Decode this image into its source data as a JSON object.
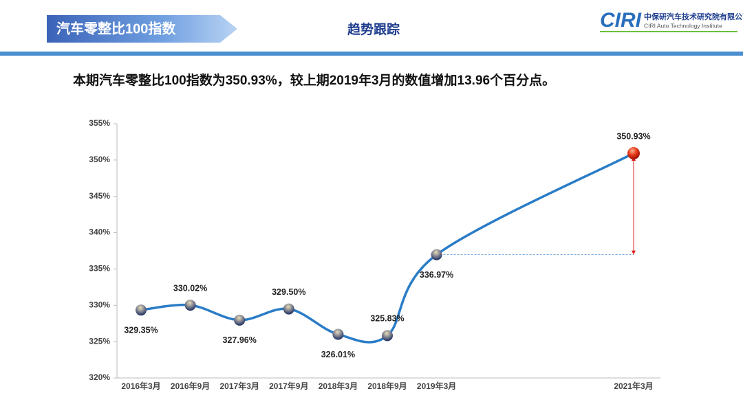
{
  "header": {
    "title": "汽车零整比100指数",
    "section": "趋势跟踪",
    "logo": "CIRI",
    "company": "中保研汽车技术研究院有限公司",
    "company_en": "CIRI Auto Technology Institute"
  },
  "summary": "本期汽车零整比100指数为350.93%，较上期2019年3月的数值增加13.96个百分点。",
  "chart_data": {
    "type": "line",
    "categories": [
      "2016年3月",
      "2016年9月",
      "2017年3月",
      "2017年9月",
      "2018年3月",
      "2018年9月",
      "2019年3月",
      null,
      null,
      null,
      "2021年3月"
    ],
    "values": [
      329.35,
      330.02,
      327.96,
      329.5,
      326.01,
      325.83,
      336.97,
      null,
      null,
      null,
      350.93
    ],
    "value_labels": [
      "329.35%",
      "330.02%",
      "327.96%",
      "329.50%",
      "326.01%",
      "325.83%",
      "336.97%",
      null,
      null,
      null,
      "350.93%"
    ],
    "color": "#2a7cc7",
    "span_gaps": true,
    "ylim": [
      320,
      355
    ],
    "yticks": [
      {
        "value": 320,
        "label": "320%"
      },
      {
        "value": 325,
        "label": "325%"
      },
      {
        "value": 330,
        "label": "330%"
      },
      {
        "value": 335,
        "label": "335%"
      },
      {
        "value": 340,
        "label": "340%"
      },
      {
        "value": 345,
        "label": "345%"
      },
      {
        "value": 350,
        "label": "350%"
      },
      {
        "value": 355,
        "label": "355%"
      }
    ],
    "grid": false
  }
}
